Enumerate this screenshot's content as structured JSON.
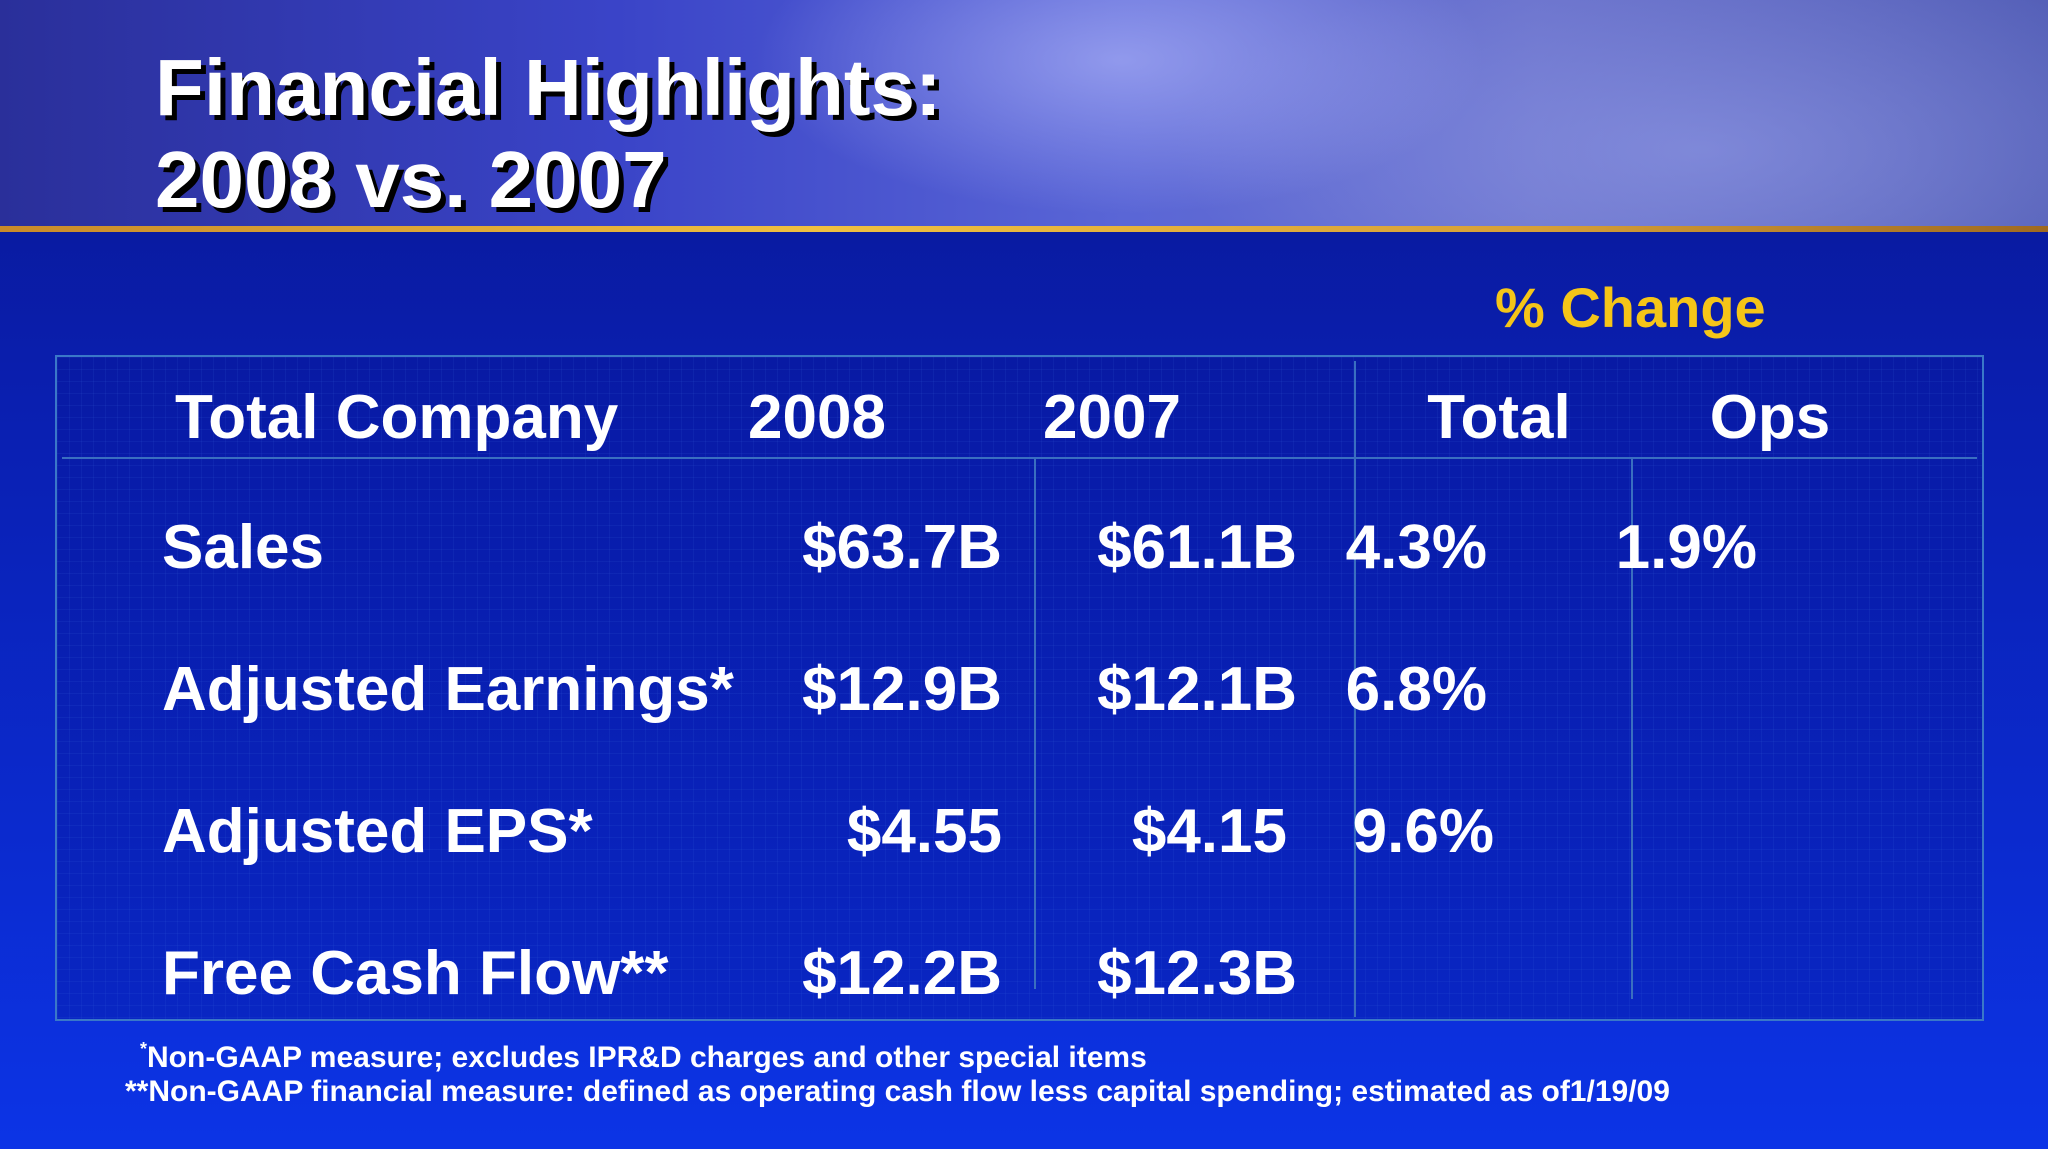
{
  "title": {
    "line1": "Financial Highlights:",
    "line2": "2008 vs. 2007"
  },
  "table": {
    "group_header": "% Change",
    "columns": {
      "label": "Total Company",
      "y2008": "2008",
      "y2007": "2007",
      "total": "Total",
      "ops": "Ops"
    },
    "rows": [
      {
        "label": "Sales",
        "y2008": "$63.7B",
        "y2007": "$61.1B",
        "total": "4.3%",
        "ops": "1.9%"
      },
      {
        "label": "Adjusted Earnings*",
        "y2008": "$12.9B",
        "y2007": "$12.1B",
        "total": "6.8%",
        "ops": ""
      },
      {
        "label": "Adjusted EPS*",
        "y2008": "$4.55",
        "y2007": "$4.15",
        "total": "9.6%",
        "ops": ""
      },
      {
        "label": "Free Cash Flow**",
        "y2008": "$12.2B",
        "y2007": "$12.3B",
        "total": "",
        "ops": ""
      }
    ]
  },
  "footnotes": {
    "note1_marker": "*",
    "note1_text": "Non-GAAP measure; excludes IPR&D charges and other special items",
    "note2": "**Non-GAAP financial measure: defined as operating cash flow less capital spending; estimated as of1/19/09"
  },
  "colors": {
    "background": "#0b25c0",
    "accent_gold": "#f5c518",
    "rule_gold": "#f0c040",
    "grid_line": "#3a6fc0"
  }
}
